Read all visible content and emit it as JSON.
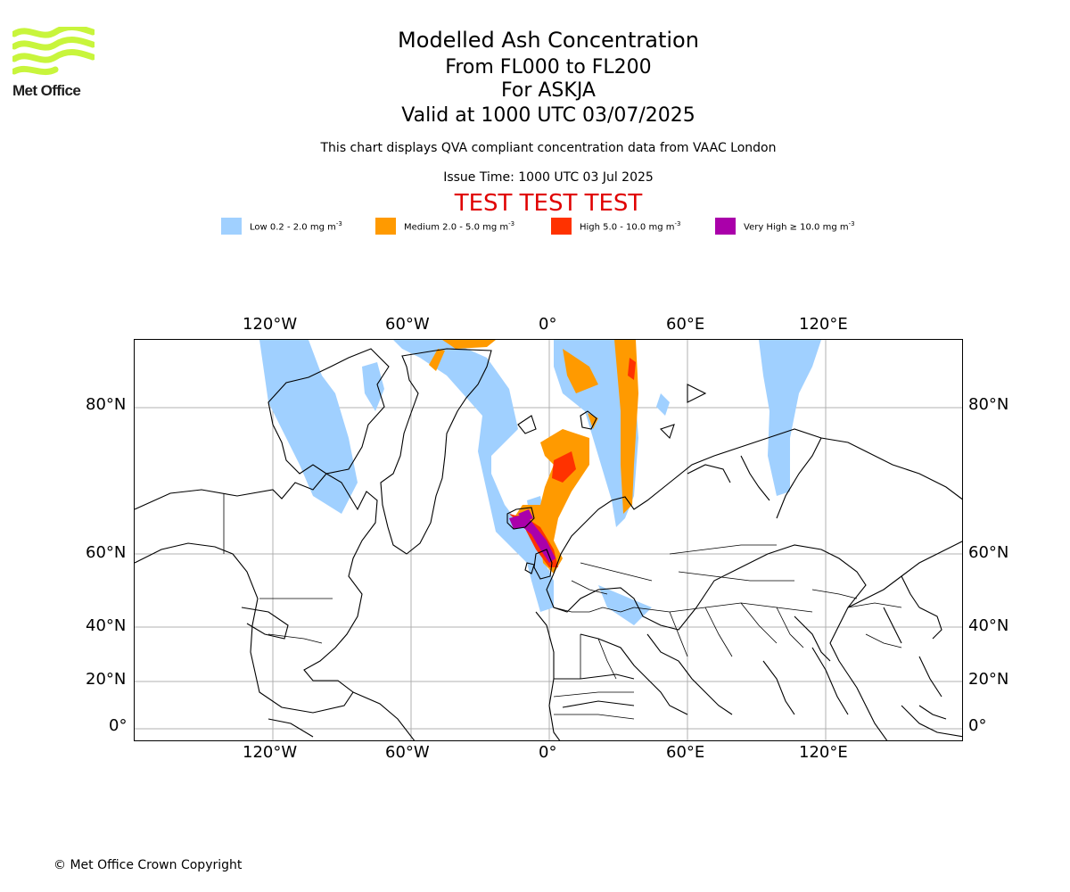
{
  "header": {
    "logo_text": "Met Office",
    "title": "Modelled Ash Concentration",
    "levels": "From FL000 to FL200",
    "volcano": "For ASKJA",
    "valid": "Valid at 1000 UTC 03/07/2025",
    "note": "This chart displays QVA compliant concentration data from VAAC London",
    "issue_time": "Issue Time: 1000 UTC 03 Jul 2025",
    "test_banner": "TEST TEST TEST"
  },
  "legend": {
    "items": [
      {
        "label": "Low 0.2 - 2.0 mg m",
        "unit_exp": "-3",
        "color": "#a0d0ff"
      },
      {
        "label": "Medium 2.0 - 5.0 mg m",
        "unit_exp": "-3",
        "color": "#ff9a00"
      },
      {
        "label": "High 5.0 - 10.0 mg m",
        "unit_exp": "-3",
        "color": "#ff3200"
      },
      {
        "label": "Very High ≥ 10.0 mg m",
        "unit_exp": "-3",
        "color": "#aa00aa"
      }
    ]
  },
  "map": {
    "lon_ticks": [
      "120°W",
      "60°W",
      "0°",
      "60°E",
      "120°E"
    ],
    "lat_ticks": [
      "80°N",
      "60°N",
      "40°N",
      "20°N",
      "0°"
    ],
    "gridline_color": "#b0b0b0"
  },
  "footer": {
    "copyright": "© Met Office Crown Copyright"
  }
}
